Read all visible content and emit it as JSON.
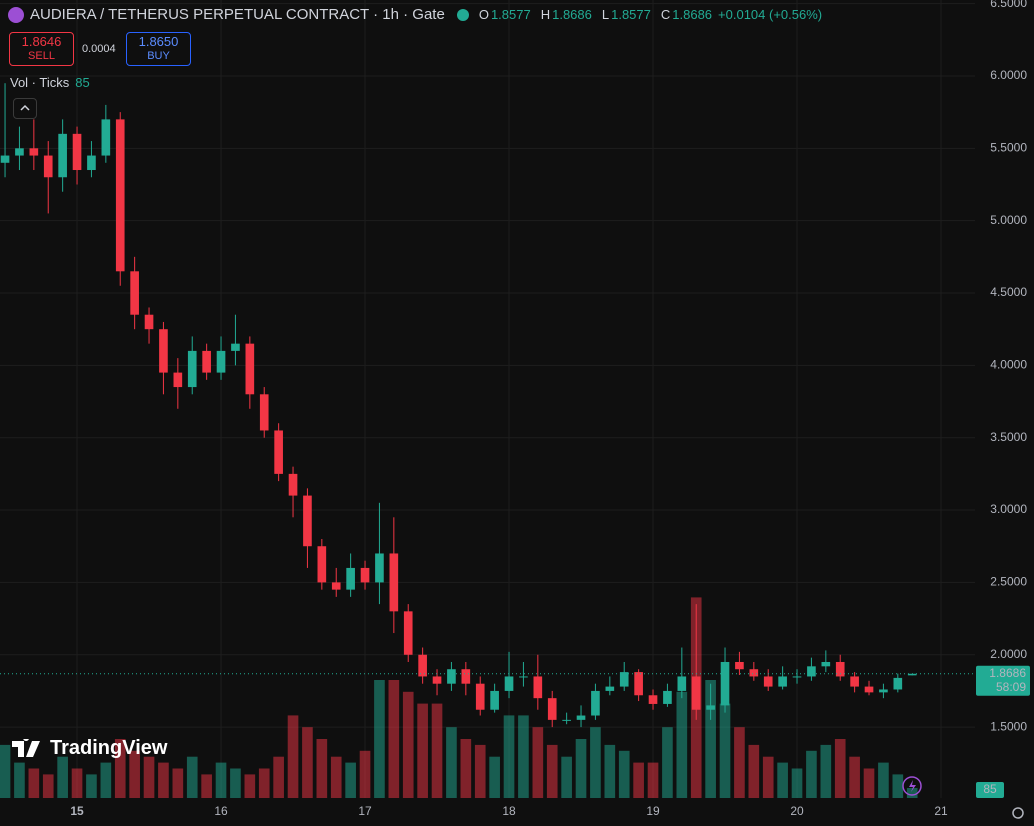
{
  "chart_data": {
    "type": "candlestick",
    "title": "AUDIERA / TETHERUS PERPETUAL CONTRACT · 1h · Gate",
    "ohlc_labels": [
      "O",
      "H",
      "L",
      "C"
    ],
    "change": "+0.0104 (+0.56%)",
    "countdown": "58:09",
    "volume_label": "Vol · Ticks",
    "brand": "TradingView",
    "trade": {
      "sell_price": "1.8646",
      "sell": "SELL",
      "spread": "0.0004",
      "buy_price": "1.8650",
      "buy": "BUY"
    },
    "up_color": "#22ab94",
    "down_color": "#f23645",
    "x": [
      14.5,
      14.6,
      14.7,
      14.8,
      14.9,
      15.0,
      15.1,
      15.2,
      15.3,
      15.4,
      15.5,
      15.6,
      15.7,
      15.8,
      15.9,
      16.0,
      16.1,
      16.2,
      16.3,
      16.4,
      16.5,
      16.6,
      16.7,
      16.8,
      16.9,
      17.0,
      17.1,
      17.2,
      17.3,
      17.4,
      17.5,
      17.6,
      17.7,
      17.8,
      17.9,
      18.0,
      18.1,
      18.2,
      18.3,
      18.4,
      18.5,
      18.6,
      18.7,
      18.8,
      18.9,
      19.0,
      19.1,
      19.2,
      19.3,
      19.4,
      19.5,
      19.6,
      19.7,
      19.8,
      19.9,
      20.0,
      20.1,
      20.2,
      20.3,
      20.4,
      20.5,
      20.6,
      20.7,
      20.8
    ],
    "open": [
      5.4,
      5.45,
      5.5,
      5.45,
      5.3,
      5.6,
      5.35,
      5.45,
      5.7,
      4.65,
      4.35,
      4.25,
      3.95,
      3.85,
      4.1,
      3.95,
      4.1,
      4.15,
      3.8,
      3.55,
      3.25,
      3.1,
      2.75,
      2.5,
      2.45,
      2.6,
      2.5,
      2.7,
      2.3,
      2.0,
      1.85,
      1.8,
      1.9,
      1.8,
      1.62,
      1.75,
      1.85,
      1.85,
      1.7,
      1.55,
      1.55,
      1.58,
      1.75,
      1.78,
      1.88,
      1.72,
      1.66,
      1.75,
      1.85,
      1.62,
      1.65,
      1.95,
      1.9,
      1.85,
      1.78,
      1.85,
      1.85,
      1.92,
      1.95,
      1.85,
      1.78,
      1.74,
      1.76,
      1.8577
    ],
    "high": [
      5.95,
      5.65,
      5.7,
      5.55,
      5.7,
      5.65,
      5.55,
      5.8,
      5.75,
      4.75,
      4.4,
      4.3,
      4.05,
      4.2,
      4.15,
      4.2,
      4.35,
      4.2,
      3.85,
      3.6,
      3.3,
      3.15,
      2.8,
      2.6,
      2.7,
      2.65,
      3.05,
      2.95,
      2.35,
      2.05,
      1.9,
      1.95,
      1.95,
      1.85,
      1.8,
      2.02,
      1.95,
      2.0,
      1.75,
      1.6,
      1.65,
      1.8,
      1.85,
      1.95,
      1.9,
      1.76,
      1.8,
      2.05,
      2.35,
      1.8,
      2.05,
      2.02,
      1.95,
      1.9,
      1.92,
      1.9,
      1.98,
      2.03,
      2.0,
      1.88,
      1.82,
      1.8,
      1.87,
      1.8686
    ],
    "low": [
      5.3,
      5.35,
      5.35,
      5.05,
      5.2,
      5.25,
      5.3,
      5.4,
      4.55,
      4.25,
      4.15,
      3.8,
      3.7,
      3.8,
      3.9,
      3.9,
      4.0,
      3.7,
      3.5,
      3.2,
      2.95,
      2.6,
      2.45,
      2.4,
      2.4,
      2.45,
      2.35,
      2.15,
      1.95,
      1.8,
      1.72,
      1.75,
      1.72,
      1.58,
      1.6,
      1.7,
      1.78,
      1.62,
      1.5,
      1.52,
      1.5,
      1.55,
      1.72,
      1.75,
      1.68,
      1.62,
      1.64,
      1.7,
      1.55,
      1.55,
      1.6,
      1.86,
      1.82,
      1.75,
      1.76,
      1.8,
      1.82,
      1.88,
      1.82,
      1.74,
      1.72,
      1.7,
      1.74,
      1.8577
    ],
    "close": [
      5.45,
      5.5,
      5.45,
      5.3,
      5.6,
      5.35,
      5.45,
      5.7,
      4.65,
      4.35,
      4.25,
      3.95,
      3.85,
      4.1,
      3.95,
      4.1,
      4.15,
      3.8,
      3.55,
      3.25,
      3.1,
      2.75,
      2.5,
      2.45,
      2.6,
      2.5,
      2.7,
      2.3,
      2.0,
      1.85,
      1.8,
      1.9,
      1.8,
      1.62,
      1.75,
      1.85,
      1.85,
      1.7,
      1.55,
      1.55,
      1.58,
      1.75,
      1.78,
      1.88,
      1.72,
      1.66,
      1.75,
      1.85,
      1.62,
      1.65,
      1.95,
      1.9,
      1.85,
      1.78,
      1.85,
      1.85,
      1.92,
      1.95,
      1.85,
      1.78,
      1.74,
      1.76,
      1.84,
      1.8686
    ],
    "volume": [
      450,
      300,
      250,
      200,
      350,
      250,
      200,
      300,
      500,
      400,
      350,
      300,
      250,
      350,
      200,
      300,
      250,
      200,
      250,
      350,
      700,
      600,
      500,
      350,
      300,
      400,
      1000,
      1000,
      900,
      800,
      800,
      600,
      500,
      450,
      350,
      700,
      700,
      600,
      450,
      350,
      500,
      600,
      450,
      400,
      300,
      300,
      600,
      900,
      1700,
      1000,
      800,
      600,
      450,
      350,
      300,
      250,
      400,
      450,
      500,
      350,
      250,
      300,
      200,
      85
    ],
    "xlim": [
      14.465,
      21.236
    ],
    "xticks": [
      15,
      16,
      17,
      18,
      19,
      20,
      21
    ],
    "ylim": [
      1.01,
      6.525
    ],
    "yticks": [
      {
        "value": 1.5,
        "label": "1.5000"
      },
      {
        "value": 2,
        "label": "2.0000"
      },
      {
        "value": 2.5,
        "label": "2.5000"
      },
      {
        "value": 3,
        "label": "3.0000"
      },
      {
        "value": 3.5,
        "label": "3.5000"
      },
      {
        "value": 4,
        "label": "4.0000"
      },
      {
        "value": 4.5,
        "label": "4.5000"
      },
      {
        "value": 5,
        "label": "5.0000"
      },
      {
        "value": 5.5,
        "label": "5.5000"
      },
      {
        "value": 6,
        "label": "6.0000"
      },
      {
        "value": 6.5,
        "label": "6.5000"
      }
    ],
    "volume_lim": [
      0,
      2000
    ],
    "grid": true
  }
}
